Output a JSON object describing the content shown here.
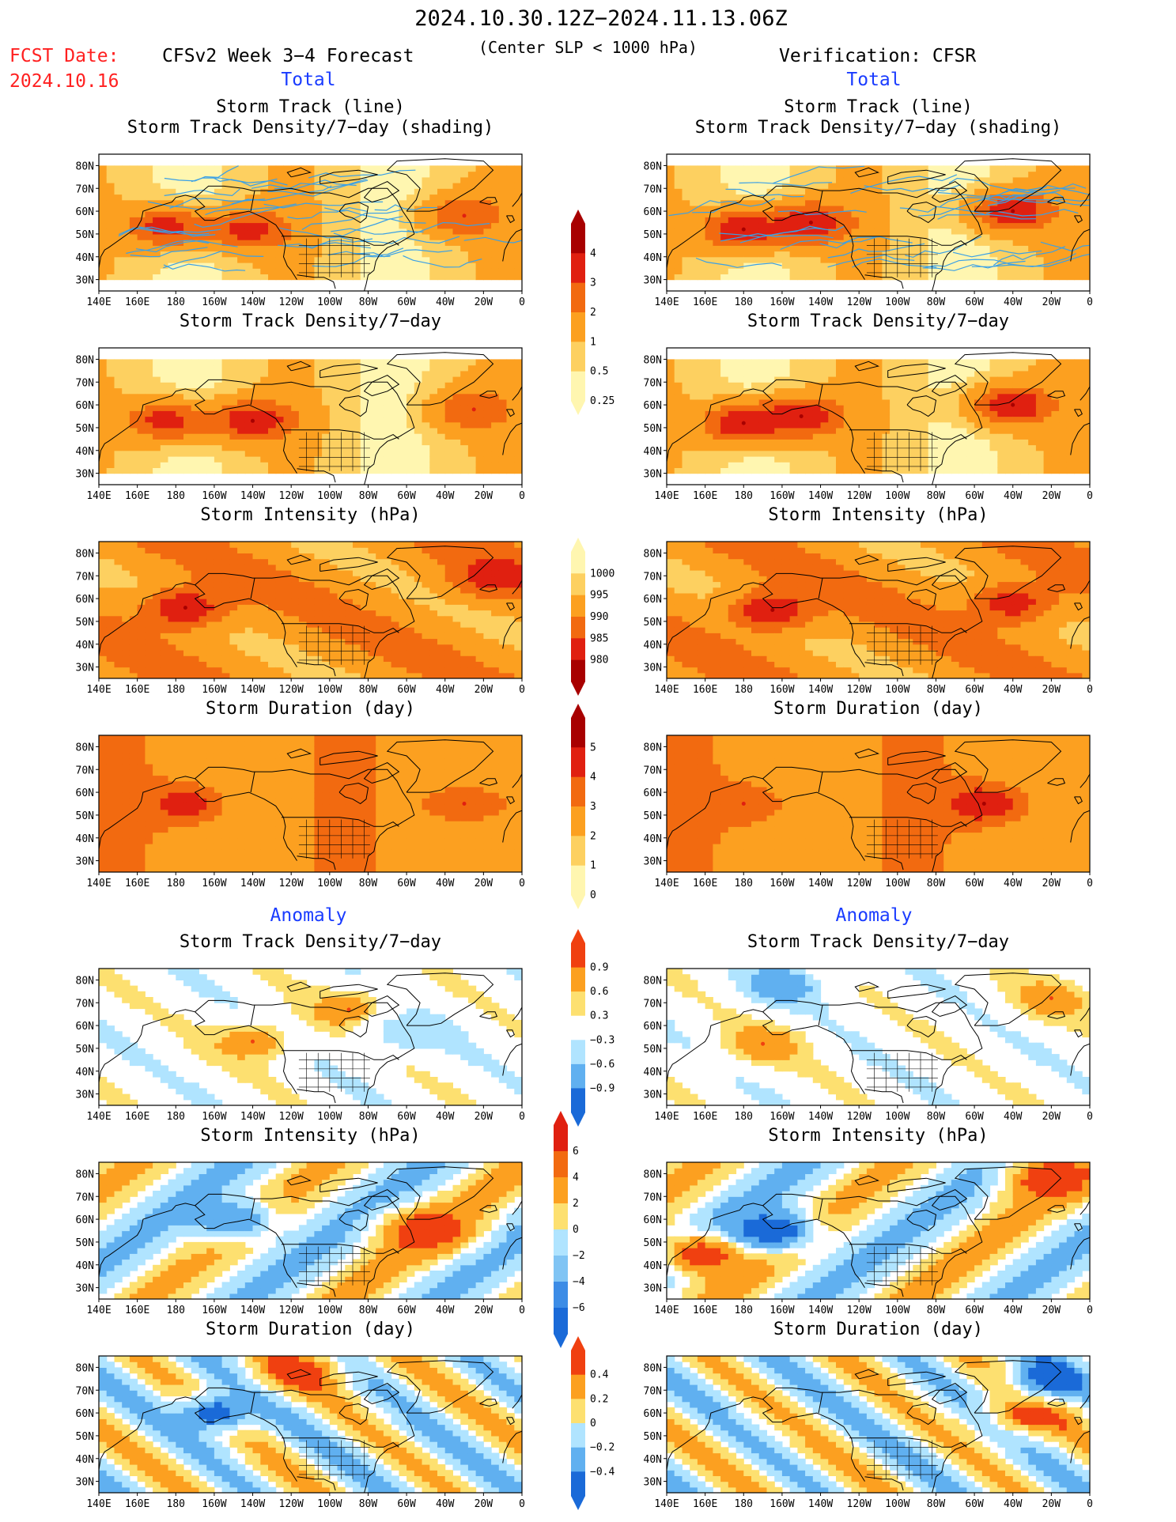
{
  "header": {
    "date_range": "2024.10.30.12Z−2024.11.13.06Z",
    "fcst_label": "FCST Date:",
    "fcst_date": "2024.10.16",
    "model": "CFSv2 Week 3−4 Forecast",
    "condition": "(Center SLP < 1000 hPa)",
    "verification": "Verification: CFSR"
  },
  "section_labels": {
    "total_left": "Total",
    "total_right": "Total",
    "anomaly_left": "Anomaly",
    "anomaly_right": "Anomaly"
  },
  "colors": {
    "red_text": "#ff2020",
    "blue_text": "#1a3cff",
    "track_line": "#3aa0e6",
    "land_line": "#000000"
  },
  "map_axes": {
    "lon_ticks": [
      "140E",
      "160E",
      "180",
      "160W",
      "140W",
      "120W",
      "100W",
      "80W",
      "60W",
      "40W",
      "20W",
      "0"
    ],
    "lat_ticks": [
      "80N",
      "70N",
      "60N",
      "50N",
      "40N",
      "30N"
    ],
    "lon_range": [
      140,
      360
    ],
    "lat_range": [
      25,
      85
    ]
  },
  "colorbars": [
    {
      "name": "total-density",
      "levels": [
        "4",
        "3",
        "2",
        "1",
        "0.5",
        "0.25"
      ],
      "colors": [
        "#a80000",
        "#e02010",
        "#f26a10",
        "#fca020",
        "#fdd060",
        "#fff6b0"
      ]
    },
    {
      "name": "total-intensity",
      "levels": [
        "1000",
        "995",
        "990",
        "985",
        "980"
      ],
      "colors": [
        "#fff6b0",
        "#fdd060",
        "#fca020",
        "#f26a10",
        "#e02010",
        "#a80000"
      ]
    },
    {
      "name": "total-duration",
      "levels": [
        "5",
        "4",
        "3",
        "2",
        "1",
        "0"
      ],
      "colors": [
        "#a80000",
        "#e02010",
        "#f26a10",
        "#fca020",
        "#fdd060",
        "#fff6b0"
      ]
    },
    {
      "name": "anomaly-density",
      "levels": [
        "0.9",
        "0.6",
        "0.3",
        "−0.3",
        "−0.6",
        "−0.9"
      ],
      "colors": [
        "#f04010",
        "#fca020",
        "#fde070",
        "#ffffff",
        "#b0e4ff",
        "#60b0f0",
        "#1a6ad8"
      ]
    },
    {
      "name": "anomaly-intensity",
      "levels": [
        "6",
        "4",
        "2",
        "0",
        "−2",
        "−4",
        "−6"
      ],
      "colors": [
        "#e02010",
        "#f26a10",
        "#fca020",
        "#fde070",
        "#b0e4ff",
        "#80c4f4",
        "#3c8ce6",
        "#1a6ad8"
      ]
    },
    {
      "name": "anomaly-duration",
      "levels": [
        "0.4",
        "0.2",
        "0",
        "−0.2",
        "−0.4"
      ],
      "colors": [
        "#f04010",
        "#fca020",
        "#fde070",
        "#b0e4ff",
        "#60b0f0",
        "#1a6ad8"
      ]
    }
  ],
  "chart_data": [
    {
      "type": "heatmap",
      "panel": "left-1",
      "title": "Storm Track (line)",
      "subtitle": "Storm Track Density/7−day (shading)",
      "scale": "total",
      "tracks": true,
      "max_centers": [
        {
          "lon": 175,
          "lat": 53,
          "value": 3.5
        },
        {
          "lon": 218,
          "lat": 52,
          "value": 3.5
        },
        {
          "lon": 330,
          "lat": 58,
          "value": 3
        }
      ]
    },
    {
      "type": "heatmap",
      "panel": "right-1",
      "title": "Storm Track (line)",
      "subtitle": "Storm Track Density/7−day (shading)",
      "scale": "total",
      "tracks": true,
      "max_centers": [
        {
          "lon": 180,
          "lat": 52,
          "value": 4
        },
        {
          "lon": 215,
          "lat": 55,
          "value": 4
        },
        {
          "lon": 320,
          "lat": 60,
          "value": 4
        }
      ]
    },
    {
      "type": "heatmap",
      "panel": "left-2",
      "title": "Storm Track Density/7−day",
      "scale": "total",
      "max_centers": [
        {
          "lon": 175,
          "lat": 53,
          "value": 3.5
        },
        {
          "lon": 220,
          "lat": 53,
          "value": 4
        },
        {
          "lon": 335,
          "lat": 58,
          "value": 3
        }
      ]
    },
    {
      "type": "heatmap",
      "panel": "right-2",
      "title": "Storm Track Density/7−day",
      "scale": "total",
      "max_centers": [
        {
          "lon": 180,
          "lat": 52,
          "value": 4
        },
        {
          "lon": 210,
          "lat": 55,
          "value": 4
        },
        {
          "lon": 320,
          "lat": 60,
          "value": 4
        }
      ]
    },
    {
      "type": "heatmap",
      "panel": "left-3",
      "title": "Storm Intensity (hPa)",
      "scale": "intensity",
      "max_centers": [
        {
          "lon": 185,
          "lat": 56,
          "value": 980
        },
        {
          "lon": 345,
          "lat": 70,
          "value": 982
        }
      ]
    },
    {
      "type": "heatmap",
      "panel": "right-3",
      "title": "Storm Intensity (hPa)",
      "scale": "intensity",
      "max_centers": [
        {
          "lon": 195,
          "lat": 55,
          "value": 980
        },
        {
          "lon": 320,
          "lat": 58,
          "value": 982
        }
      ]
    },
    {
      "type": "heatmap",
      "panel": "left-4",
      "title": "Storm Duration (day)",
      "scale": "duration",
      "max_centers": [
        {
          "lon": 185,
          "lat": 55,
          "value": 4.5
        },
        {
          "lon": 330,
          "lat": 55,
          "value": 4
        }
      ]
    },
    {
      "type": "heatmap",
      "panel": "right-4",
      "title": "Storm Duration (day)",
      "scale": "duration",
      "max_centers": [
        {
          "lon": 305,
          "lat": 55,
          "value": 5
        },
        {
          "lon": 180,
          "lat": 55,
          "value": 4
        }
      ]
    },
    {
      "type": "heatmap",
      "panel": "left-5",
      "title": "Storm Track Density/7−day",
      "scale": "anomaly",
      "max_centers": [
        {
          "lon": 220,
          "lat": 53,
          "value": 0.9
        },
        {
          "lon": 270,
          "lat": 67,
          "value": 0.9
        },
        {
          "lon": 300,
          "lat": 57,
          "value": -0.6
        }
      ]
    },
    {
      "type": "heatmap",
      "panel": "right-5",
      "title": "Storm Track Density/7−day",
      "scale": "anomaly",
      "max_centers": [
        {
          "lon": 190,
          "lat": 52,
          "value": 0.9
        },
        {
          "lon": 200,
          "lat": 78,
          "value": -0.9
        },
        {
          "lon": 340,
          "lat": 72,
          "value": 0.9
        }
      ]
    },
    {
      "type": "heatmap",
      "panel": "left-6",
      "title": "Storm Intensity (hPa)",
      "scale": "anomaly_int",
      "max_centers": [
        {
          "lon": 310,
          "lat": 55,
          "value": 6
        },
        {
          "lon": 210,
          "lat": 60,
          "value": -4
        }
      ]
    },
    {
      "type": "heatmap",
      "panel": "right-6",
      "title": "Storm Intensity (hPa)",
      "scale": "anomaly_int",
      "max_centers": [
        {
          "lon": 340,
          "lat": 78,
          "value": 6
        },
        {
          "lon": 160,
          "lat": 45,
          "value": 6
        },
        {
          "lon": 195,
          "lat": 55,
          "value": -6
        }
      ]
    },
    {
      "type": "heatmap",
      "panel": "left-7",
      "title": "Storm Duration (day)",
      "scale": "anomaly_dur",
      "max_centers": [
        {
          "lon": 245,
          "lat": 78,
          "value": 0.4
        },
        {
          "lon": 200,
          "lat": 60,
          "value": -0.4
        }
      ]
    },
    {
      "type": "heatmap",
      "panel": "right-7",
      "title": "Storm Duration (day)",
      "scale": "anomaly_dur",
      "max_centers": [
        {
          "lon": 330,
          "lat": 60,
          "value": 0.4
        },
        {
          "lon": 340,
          "lat": 75,
          "value": -0.4
        }
      ]
    }
  ]
}
